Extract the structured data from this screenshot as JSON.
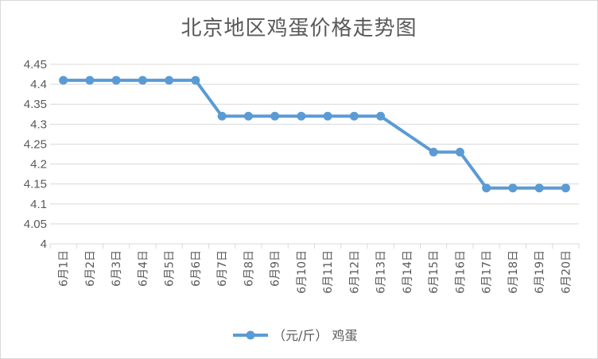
{
  "chart_data": {
    "type": "line",
    "title": "北京地区鸡蛋价格走势图",
    "xlabel": "",
    "ylabel": "",
    "categories": [
      "6月1日",
      "6月2日",
      "6月3日",
      "6月4日",
      "6月5日",
      "6月6日",
      "6月7日",
      "6月8日",
      "6月9日",
      "6月10日",
      "6月11日",
      "6月12日",
      "6月13日",
      "6月14日",
      "6月15日",
      "6月16日",
      "6月17日",
      "6月18日",
      "6月19日",
      "6月20日"
    ],
    "series": [
      {
        "name": "（元/斤） 鸡蛋",
        "values": [
          4.41,
          4.41,
          4.41,
          4.41,
          4.41,
          4.41,
          4.32,
          4.32,
          4.32,
          4.32,
          4.32,
          4.32,
          4.32,
          null,
          4.23,
          4.23,
          4.14,
          4.14,
          4.14,
          4.14
        ],
        "color": "#5b9bd5"
      }
    ],
    "ylim": [
      4,
      4.45
    ],
    "y_ticks": [
      "4",
      "4.05",
      "4.1",
      "4.15",
      "4.2",
      "4.25",
      "4.3",
      "4.35",
      "4.4",
      "4.45"
    ],
    "grid": "horizontal",
    "legend_position": "bottom",
    "gridline_color": "#d9d9d9",
    "axis_text_color": "#595959"
  }
}
